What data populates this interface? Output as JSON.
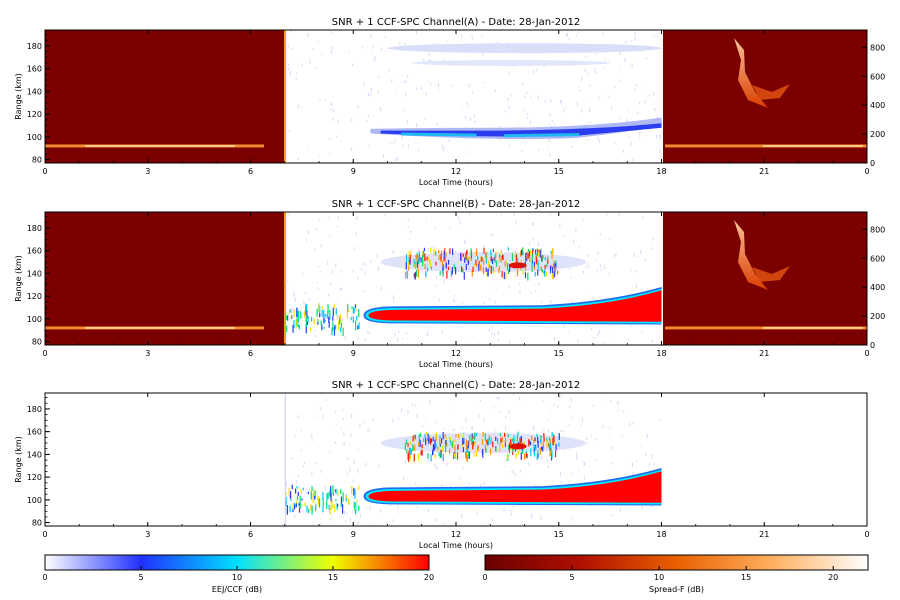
{
  "chart_data": [
    {
      "type": "heatmap",
      "panel": "A",
      "title": "SNR + 1 CCF-SPC Channel(A) - Date: 28-Jan-2012",
      "xlabel": "Local Time (hours)",
      "ylabel": "Range (km)",
      "xlim": [
        0,
        24
      ],
      "ylim": [
        77,
        194
      ],
      "xticks": [
        "0",
        "3",
        "6",
        "9",
        "12",
        "15",
        "18",
        "21",
        "0"
      ],
      "yticks": [
        80,
        100,
        120,
        140,
        160,
        180
      ],
      "y2ticks": [
        0,
        200,
        400,
        600,
        800
      ],
      "y2lim": [
        0,
        920
      ],
      "colorscale": "EEJ/CCF (dB)",
      "night_spreadF_overlay": true,
      "features": [
        {
          "name": "EEJ echo",
          "t_start": 9.5,
          "t_end": 18,
          "range_low": 98,
          "range_high": 113,
          "peak_db": 5
        },
        {
          "name": "upper echo",
          "t_start": 10.5,
          "t_end": 17,
          "range_low": 160,
          "range_high": 182,
          "peak_db": 1
        }
      ]
    },
    {
      "type": "heatmap",
      "panel": "B",
      "title": "SNR + 1 CCF-SPC Channel(B) - Date: 28-Jan-2012",
      "xlabel": "Local Time (hours)",
      "ylabel": "Range (km)",
      "xlim": [
        0,
        24
      ],
      "ylim": [
        77,
        194
      ],
      "xticks": [
        "0",
        "3",
        "6",
        "9",
        "12",
        "15",
        "18",
        "21",
        "0"
      ],
      "yticks": [
        80,
        100,
        120,
        140,
        160,
        180
      ],
      "y2ticks": [
        0,
        200,
        400,
        600,
        800
      ],
      "y2lim": [
        0,
        920
      ],
      "colorscale": "EEJ/CCF (dB)",
      "night_spreadF_overlay": true,
      "features": [
        {
          "name": "EEJ echo",
          "t_start": 9.3,
          "t_end": 18,
          "range_low": 95,
          "range_high": 128,
          "peak_db": 20
        },
        {
          "name": "150 km echo",
          "t_start": 10.5,
          "t_end": 15,
          "range_low": 140,
          "range_high": 163,
          "peak_db": 15
        }
      ]
    },
    {
      "type": "heatmap",
      "panel": "C",
      "title": "SNR + 1 CCF-SPC Channel(C) - Date: 28-Jan-2012",
      "xlabel": "Local Time (hours)",
      "ylabel": "Range (km)",
      "xlim": [
        0,
        24
      ],
      "ylim": [
        77,
        194
      ],
      "xticks": [
        "0",
        "3",
        "6",
        "9",
        "12",
        "15",
        "18",
        "21",
        "0"
      ],
      "yticks": [
        80,
        100,
        120,
        140,
        160,
        180
      ],
      "colorscale": "EEJ/CCF (dB)",
      "night_spreadF_overlay": false,
      "features": [
        {
          "name": "EEJ echo",
          "t_start": 9.3,
          "t_end": 18,
          "range_low": 95,
          "range_high": 128,
          "peak_db": 20
        },
        {
          "name": "150 km echo",
          "t_start": 10.5,
          "t_end": 15,
          "range_low": 140,
          "range_high": 160,
          "peak_db": 15
        }
      ]
    }
  ],
  "colorbars": [
    {
      "label": "EEJ/CCF (dB)",
      "ticks": [
        "0",
        "5",
        "10",
        "15",
        "20"
      ],
      "range": [
        0,
        20
      ],
      "stops": [
        "#ffffff",
        "#2030ff",
        "#00e0ff",
        "#f0ff00",
        "#ff0000"
      ]
    },
    {
      "label": "Spread-F (dB)",
      "ticks": [
        "0",
        "5",
        "10",
        "15",
        "20"
      ],
      "range": [
        0,
        22
      ],
      "stops": [
        "#6a0000",
        "#b01000",
        "#e86000",
        "#ffb060",
        "#ffffff"
      ]
    }
  ],
  "colors": {
    "night_bg": "#7b0000",
    "eej_low": "#c8ccf4",
    "eej_mid": "#2a3cf0",
    "eej_high": "#ff0000",
    "eej_edge": "#00e8ff"
  }
}
